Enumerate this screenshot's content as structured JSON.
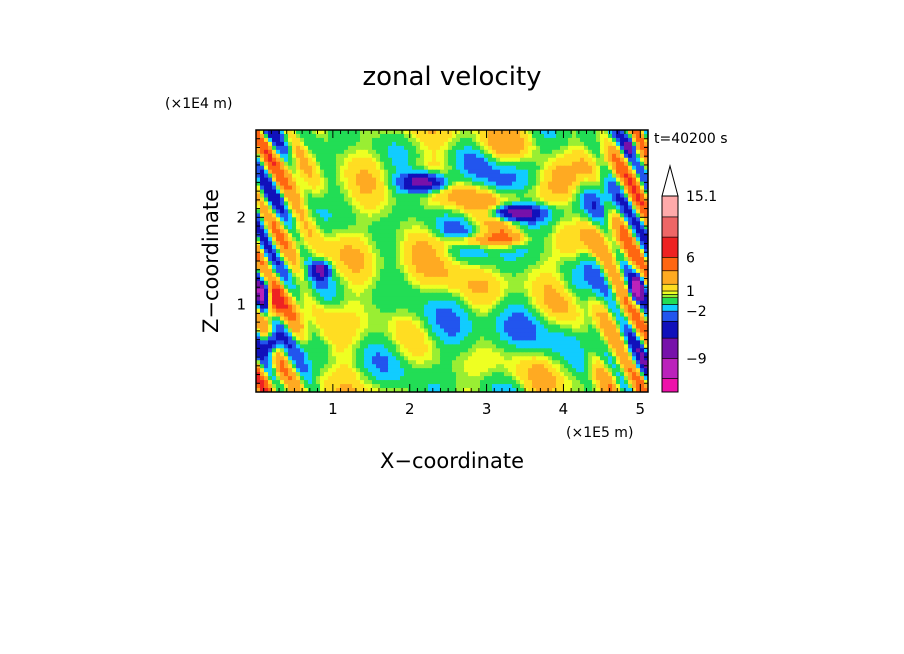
{
  "chart_data": {
    "type": "heatmap",
    "title": "zonal velocity",
    "xlabel": "X−coordinate",
    "ylabel": "Z−coordinate",
    "x_scale_label": "(×1E5 m)",
    "y_scale_label": "(×1E4 m)",
    "time_label": "t=40200 s",
    "xlim": [
      0,
      5.1
    ],
    "ylim": [
      0,
      3
    ],
    "x_ticks": [
      "1",
      "2",
      "3",
      "4",
      "5"
    ],
    "x_tick_values": [
      1,
      2,
      3,
      4,
      5
    ],
    "y_ticks": [
      "1",
      "2"
    ],
    "y_tick_values": [
      1,
      2
    ],
    "grid": false,
    "legend_placement": "right",
    "colorbar": {
      "labels": [
        "15.1",
        "6",
        "1",
        "−2",
        "−9"
      ],
      "label_values": [
        15.1,
        6,
        1,
        -2,
        -9
      ],
      "range": [
        -14,
        16.5
      ],
      "levels": [
        {
          "from": -16,
          "to": -12,
          "color": "#ee11aa"
        },
        {
          "from": -12,
          "to": -9,
          "color": "#bb22bb"
        },
        {
          "from": -9,
          "to": -6,
          "color": "#7711aa"
        },
        {
          "from": -6,
          "to": -3.5,
          "color": "#1111bb"
        },
        {
          "from": -3.5,
          "to": -2,
          "color": "#2255ee"
        },
        {
          "from": -2,
          "to": -1,
          "color": "#11ccff"
        },
        {
          "from": -1,
          "to": 0,
          "color": "#22dd55"
        },
        {
          "from": 0,
          "to": 0.5,
          "color": "#99ee33"
        },
        {
          "from": 0.5,
          "to": 1,
          "color": "#eeff22"
        },
        {
          "from": 1,
          "to": 2,
          "color": "#ffdd22"
        },
        {
          "from": 2,
          "to": 4,
          "color": "#ffaa22"
        },
        {
          "from": 4,
          "to": 6,
          "color": "#ff6611"
        },
        {
          "from": 6,
          "to": 9,
          "color": "#ee2222"
        },
        {
          "from": 9,
          "to": 12,
          "color": "#ee6666"
        },
        {
          "from": 12,
          "to": 15.1,
          "color": "#ffaaaa"
        }
      ]
    }
  }
}
